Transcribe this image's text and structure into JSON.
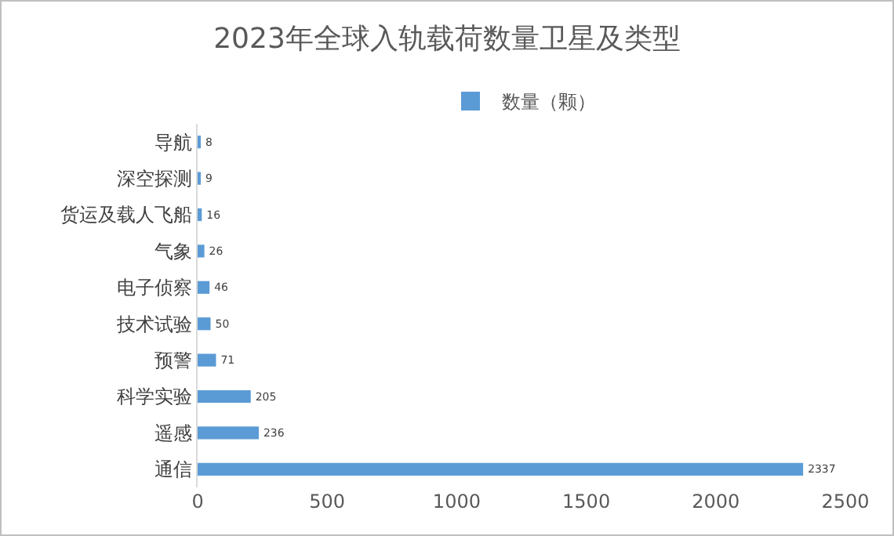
{
  "chart_data": {
    "type": "bar",
    "orientation": "horizontal",
    "title": "2023年全球入轨载荷数量卫星及类型",
    "categories": [
      "导航",
      "深空探测",
      "货运及载人飞船",
      "气象",
      "电子侦察",
      "技术试验",
      "预警",
      "科学实验",
      "遥感",
      "通信"
    ],
    "series": [
      {
        "name": "数量（颗）",
        "color": "#5b9bd5",
        "values": [
          8,
          9,
          16,
          26,
          46,
          50,
          71,
          205,
          236,
          2337
        ]
      }
    ],
    "xlim": [
      0,
      2500
    ],
    "xticks": [
      0,
      500,
      1000,
      1500,
      2000,
      2500
    ],
    "grid": false,
    "legend": "top",
    "data_labels": true
  }
}
